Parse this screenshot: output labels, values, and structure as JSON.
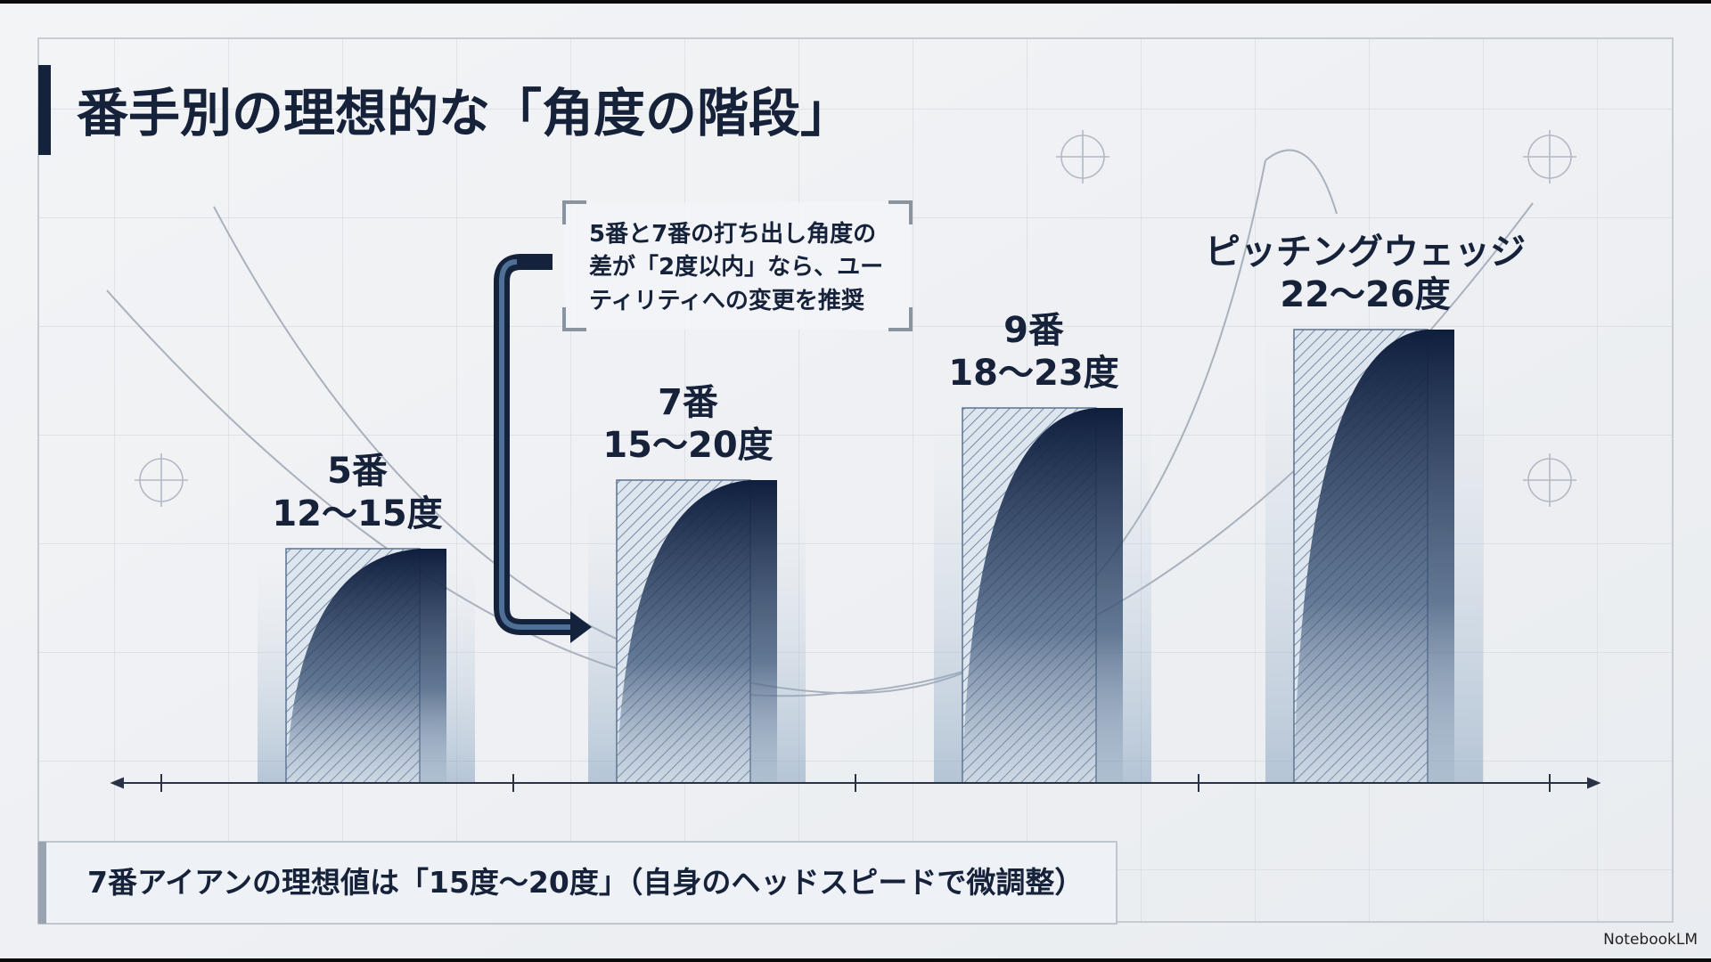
{
  "title": "番手別の理想的な「角度の階段」",
  "bars": [
    {
      "label": "5番",
      "range": "12〜15度"
    },
    {
      "label": "7番",
      "range": "15〜20度"
    },
    {
      "label": "9番",
      "range": "18〜23度"
    },
    {
      "label": "ピッチングウェッジ",
      "range": "22〜26度"
    }
  ],
  "callout": {
    "lines": [
      "5番と7番の打ち出し角度の",
      "差が「2度以内」なら、ユー",
      "ティリティへの変更を推奨"
    ]
  },
  "footer": "7番アイアンの理想値は「15度〜20度」（自身のヘッドスピードで微調整）",
  "brand": "NotebookLM"
}
